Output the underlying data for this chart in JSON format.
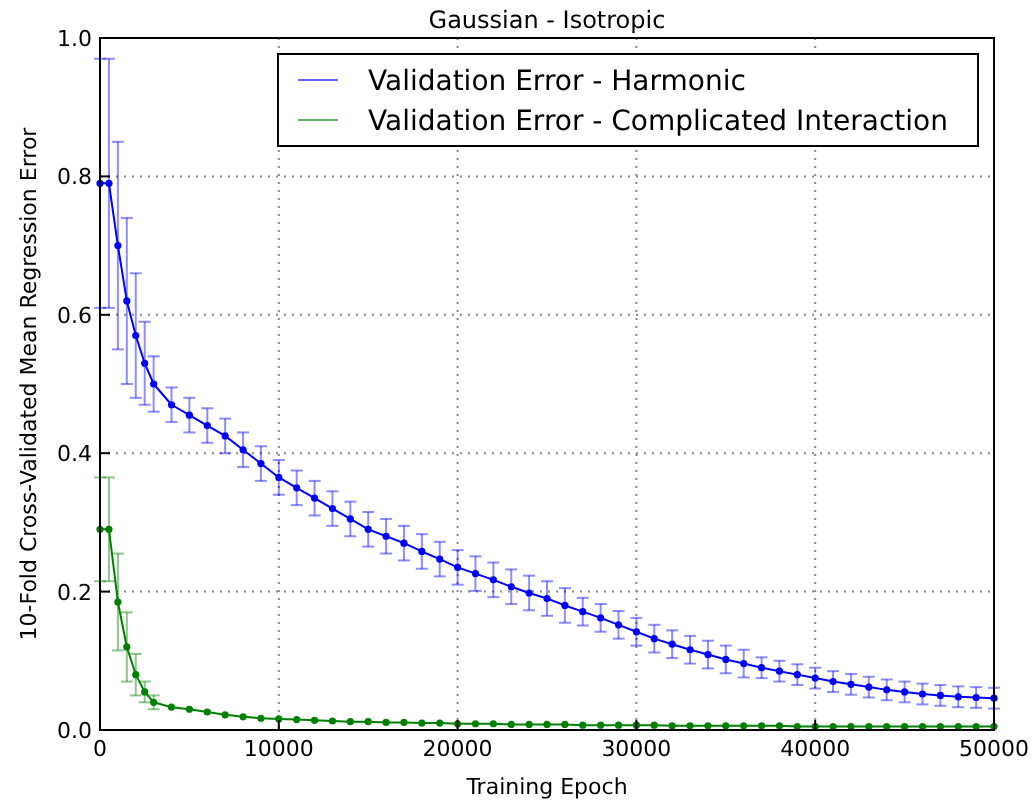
{
  "chart_data": {
    "type": "line",
    "title": "Gaussian - Isotropic",
    "xlabel": "Training Epoch",
    "ylabel": "10-Fold Cross-Validated Mean Regression Error",
    "x": [
      0,
      500,
      1000,
      1500,
      2000,
      2500,
      3000,
      4000,
      5000,
      6000,
      7000,
      8000,
      9000,
      10000,
      11000,
      12000,
      13000,
      14000,
      15000,
      16000,
      17000,
      18000,
      19000,
      20000,
      21000,
      22000,
      23000,
      24000,
      25000,
      26000,
      27000,
      28000,
      29000,
      30000,
      31000,
      32000,
      33000,
      34000,
      35000,
      36000,
      37000,
      38000,
      39000,
      40000,
      41000,
      42000,
      43000,
      44000,
      45000,
      46000,
      47000,
      48000,
      49000,
      50000
    ],
    "series": [
      {
        "name": "Validation Error - Harmonic",
        "color": "#0000ff",
        "values": [
          0.79,
          0.79,
          0.7,
          0.62,
          0.57,
          0.53,
          0.5,
          0.47,
          0.455,
          0.44,
          0.425,
          0.405,
          0.385,
          0.365,
          0.35,
          0.335,
          0.32,
          0.305,
          0.29,
          0.28,
          0.27,
          0.258,
          0.247,
          0.235,
          0.226,
          0.217,
          0.207,
          0.198,
          0.19,
          0.18,
          0.171,
          0.162,
          0.152,
          0.142,
          0.132,
          0.124,
          0.116,
          0.109,
          0.102,
          0.096,
          0.09,
          0.085,
          0.08,
          0.075,
          0.07,
          0.066,
          0.062,
          0.058,
          0.055,
          0.052,
          0.05,
          0.048,
          0.047,
          0.046
        ],
        "errors": [
          0.18,
          0.18,
          0.15,
          0.12,
          0.09,
          0.06,
          0.04,
          0.025,
          0.025,
          0.025,
          0.025,
          0.025,
          0.025,
          0.025,
          0.025,
          0.025,
          0.025,
          0.025,
          0.025,
          0.025,
          0.025,
          0.025,
          0.025,
          0.025,
          0.025,
          0.025,
          0.025,
          0.025,
          0.025,
          0.025,
          0.02,
          0.02,
          0.02,
          0.02,
          0.02,
          0.02,
          0.02,
          0.02,
          0.02,
          0.02,
          0.015,
          0.015,
          0.015,
          0.015,
          0.015,
          0.015,
          0.015,
          0.015,
          0.015,
          0.015,
          0.015,
          0.015,
          0.015,
          0.015
        ]
      },
      {
        "name": "Validation Error - Complicated Interaction",
        "color": "#008000",
        "values": [
          0.29,
          0.29,
          0.185,
          0.12,
          0.08,
          0.055,
          0.04,
          0.033,
          0.03,
          0.026,
          0.022,
          0.019,
          0.017,
          0.016,
          0.015,
          0.014,
          0.013,
          0.012,
          0.012,
          0.011,
          0.011,
          0.01,
          0.01,
          0.009,
          0.009,
          0.009,
          0.008,
          0.008,
          0.008,
          0.008,
          0.007,
          0.007,
          0.007,
          0.007,
          0.007,
          0.006,
          0.006,
          0.006,
          0.006,
          0.006,
          0.006,
          0.006,
          0.005,
          0.005,
          0.005,
          0.005,
          0.005,
          0.005,
          0.005,
          0.005,
          0.005,
          0.005,
          0.005,
          0.005
        ],
        "errors": [
          0.075,
          0.075,
          0.07,
          0.05,
          0.03,
          0.015,
          0.01,
          null,
          null,
          null,
          null,
          null,
          null,
          null,
          null,
          null,
          null,
          null,
          null,
          null,
          null,
          null,
          null,
          null,
          null,
          null,
          null,
          null,
          null,
          null,
          null,
          null,
          null,
          null,
          null,
          null,
          null,
          null,
          null,
          null,
          null,
          null,
          null,
          null,
          null,
          null,
          null,
          null,
          null,
          null,
          null,
          null,
          null,
          null
        ]
      }
    ],
    "xlim": [
      0,
      50000
    ],
    "xticks": [
      0,
      10000,
      20000,
      30000,
      40000,
      50000
    ],
    "ylim": [
      0,
      1
    ],
    "yticks": [
      {
        "value": 0,
        "label": "0.0"
      },
      {
        "value": 0.2,
        "label": "0.2"
      },
      {
        "value": 0.4,
        "label": "0.4"
      },
      {
        "value": 0.6,
        "label": "0.6"
      },
      {
        "value": 0.8,
        "label": "0.8"
      },
      {
        "value": 1,
        "label": "1.0"
      }
    ],
    "grid": true,
    "legend": "top right",
    "marker": "circle",
    "line_style": "solid"
  }
}
